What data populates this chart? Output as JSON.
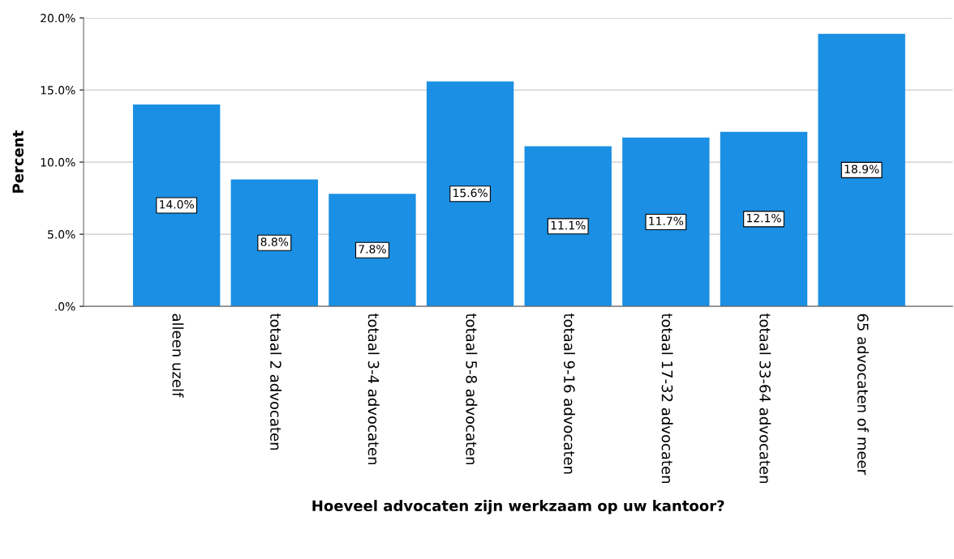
{
  "chart_data": {
    "type": "bar",
    "xlabel": "Hoeveel advocaten zijn werkzaam op uw kantoor?",
    "ylabel": "Percent",
    "categories": [
      "alleen uzelf",
      "totaal 2 advocaten",
      "totaal 3-4 advocaten",
      "totaal 5-8 advocaten",
      "totaal 9-16 advocaten",
      "totaal 17-32 advocaten",
      "totaal 33-64 advocaten",
      "65 advocaten of meer"
    ],
    "values": [
      14.0,
      8.8,
      7.8,
      15.6,
      11.1,
      11.7,
      12.1,
      18.9
    ],
    "value_labels": [
      "14.0%",
      "8.8%",
      "7.8%",
      "15.6%",
      "11.1%",
      "11.7%",
      "12.1%",
      "18.9%"
    ],
    "color": "#1a8fe3",
    "ylim": [
      0,
      20
    ],
    "yticks": [
      {
        "value": 0,
        "label": ".0%"
      },
      {
        "value": 5,
        "label": "5.0%"
      },
      {
        "value": 10,
        "label": "10.0%"
      },
      {
        "value": 15,
        "label": "15.0%"
      },
      {
        "value": 20,
        "label": "20.0%"
      }
    ],
    "grid": "y"
  }
}
